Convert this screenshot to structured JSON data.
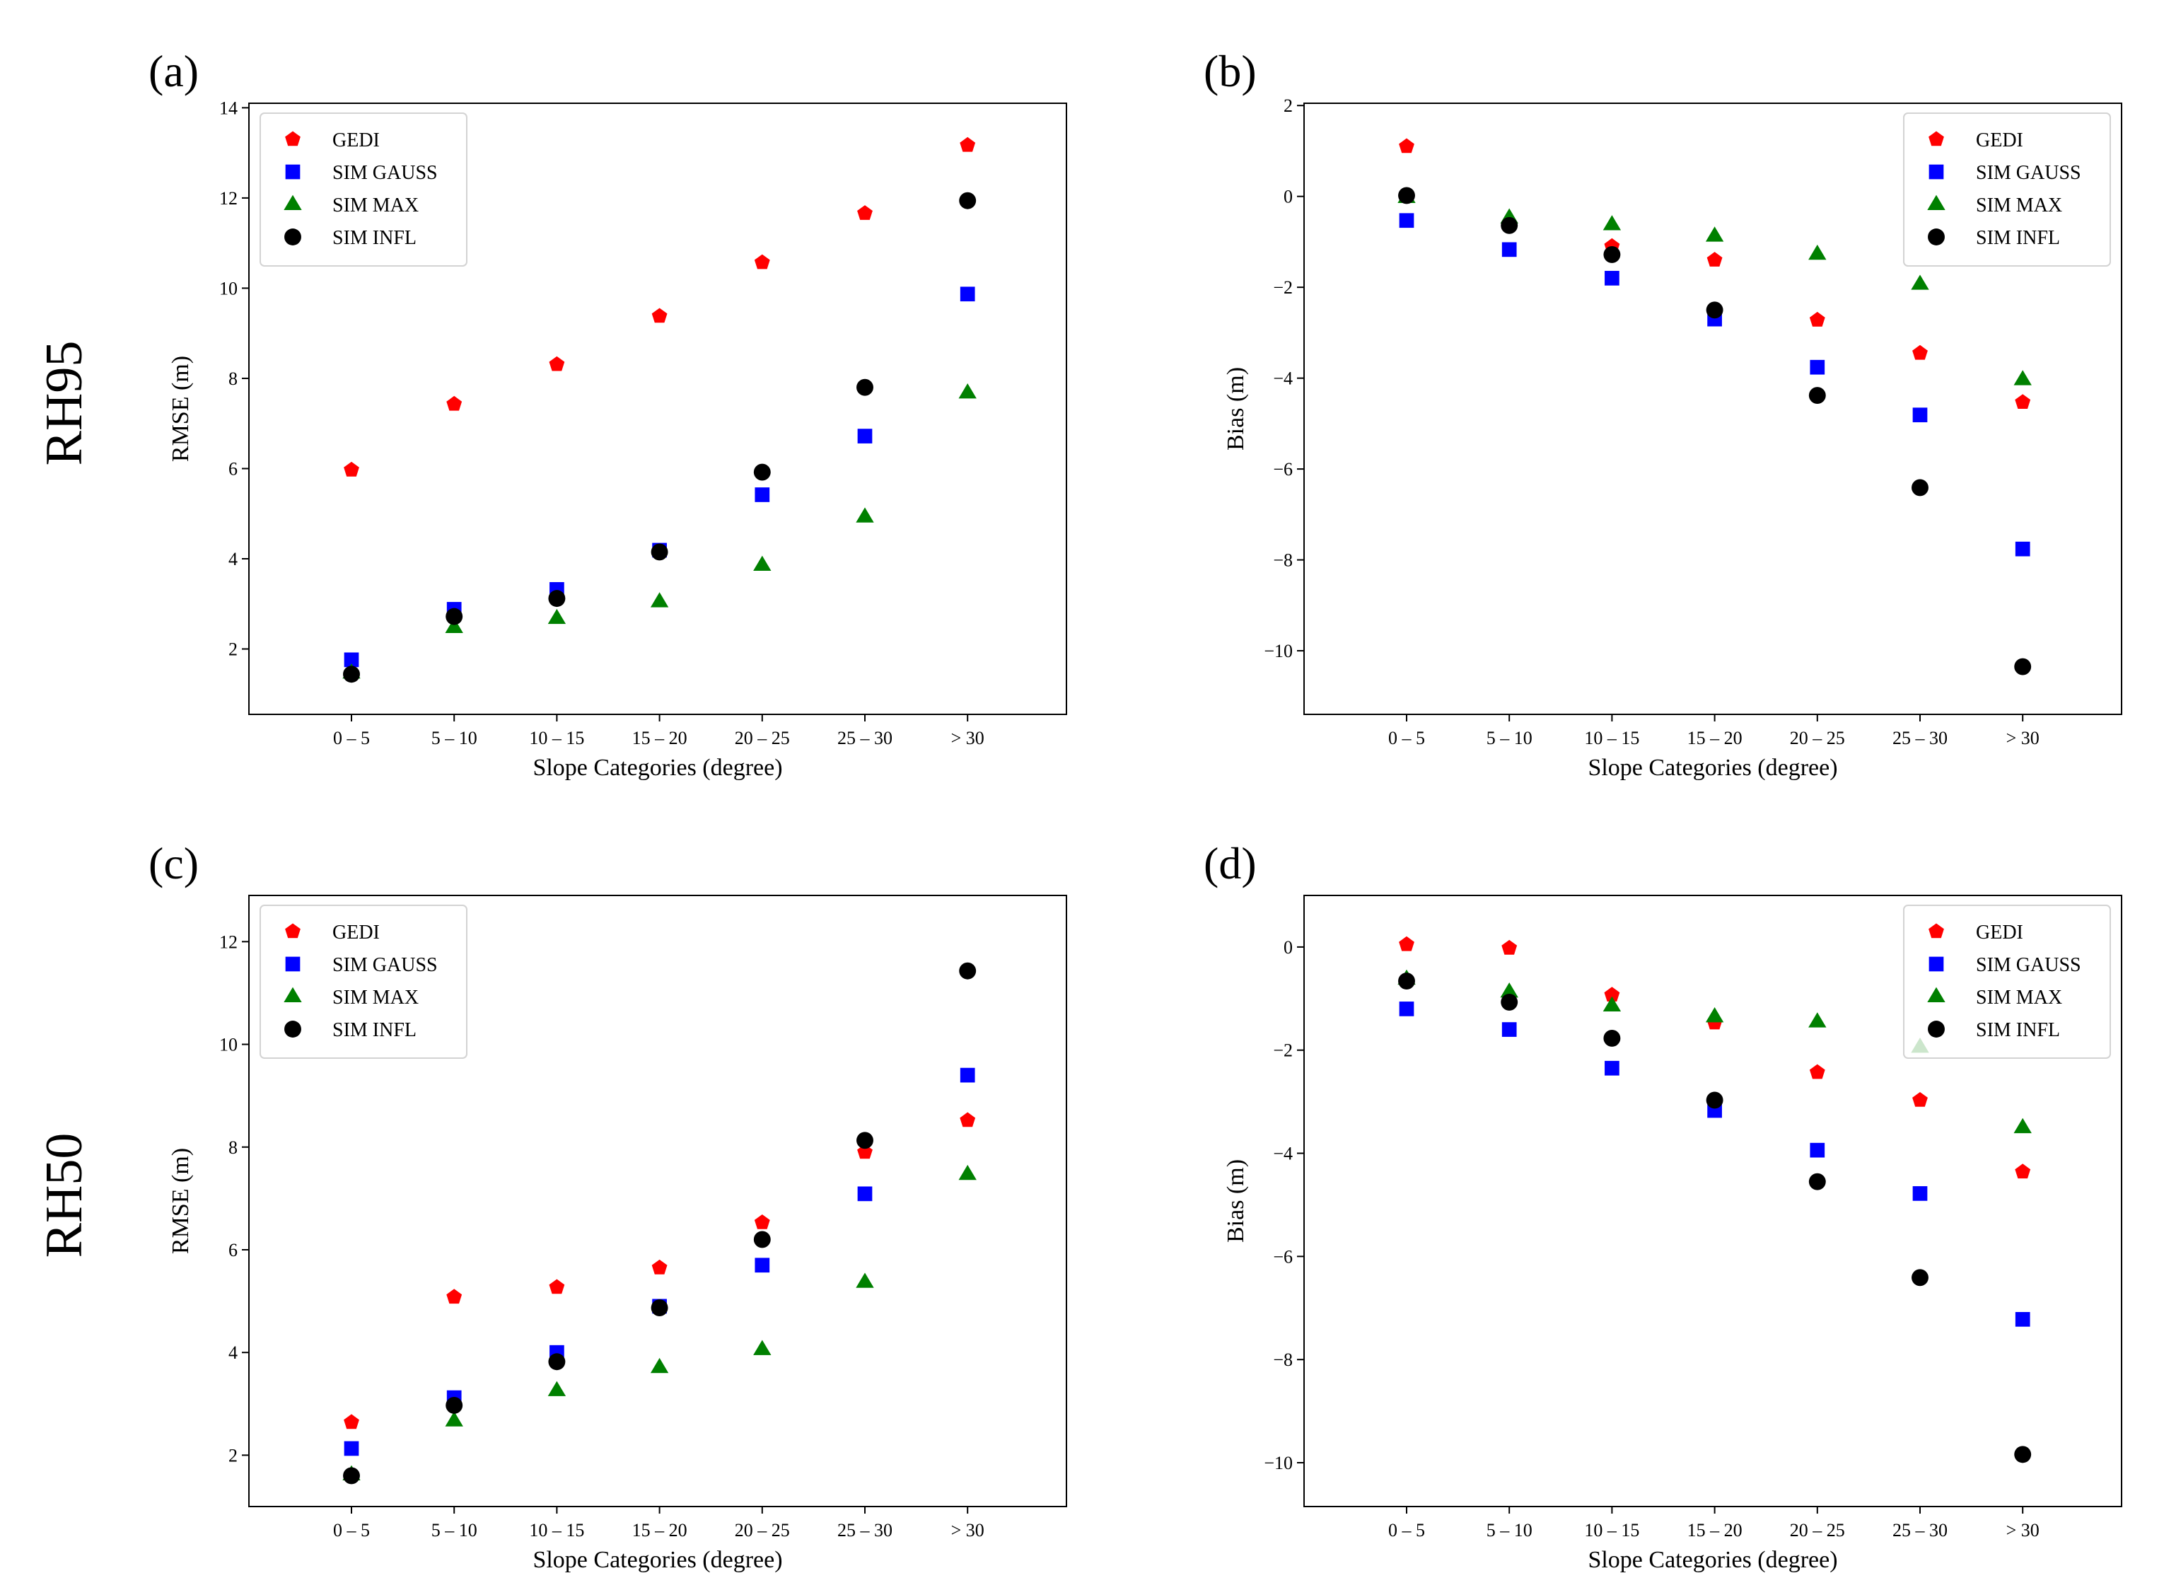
{
  "figure": {
    "row_labels": [
      "RH95",
      "RH50"
    ]
  },
  "colors": {
    "GEDI": "#ff0000",
    "SIM GAUSS": "#0000ff",
    "SIM MAX": "#008000",
    "SIM INFL": "#000000"
  },
  "chart_data": [
    {
      "panel": "(a)",
      "type": "scatter",
      "title": "",
      "xlabel": "Slope Categories (degree)",
      "ylabel": "RMSE (m)",
      "categories": [
        "0 – 5",
        "5 – 10",
        "10 – 15",
        "15 – 20",
        "20 – 25",
        "25 – 30",
        "> 30"
      ],
      "ylim": [
        0.55,
        14.1
      ],
      "yticks": [
        2,
        4,
        6,
        8,
        10,
        12,
        14
      ],
      "ytick_labels": [
        "2",
        "4",
        "6",
        "8",
        "10",
        "12",
        "14"
      ],
      "legend_position": "top-left",
      "series": [
        {
          "name": "GEDI",
          "marker": "pentagon",
          "values": [
            5.97,
            7.43,
            8.31,
            9.38,
            10.57,
            11.66,
            13.17
          ]
        },
        {
          "name": "SIM GAUSS",
          "marker": "square",
          "values": [
            1.76,
            2.88,
            3.32,
            4.19,
            5.42,
            6.72,
            9.87
          ]
        },
        {
          "name": "SIM MAX",
          "marker": "triangle",
          "values": [
            1.47,
            2.48,
            2.68,
            3.05,
            3.86,
            4.93,
            7.68
          ]
        },
        {
          "name": "SIM INFL",
          "marker": "circle",
          "values": [
            1.44,
            2.72,
            3.12,
            4.15,
            5.92,
            7.8,
            11.94
          ]
        }
      ]
    },
    {
      "panel": "(b)",
      "type": "scatter",
      "title": "",
      "xlabel": "Slope Categories (degree)",
      "ylabel": "Bias (m)",
      "categories": [
        "0 – 5",
        "5 – 10",
        "10 – 15",
        "15 – 20",
        "20 – 25",
        "25 – 30",
        "> 30"
      ],
      "ylim": [
        -11.4,
        2.05
      ],
      "yticks": [
        -10,
        -8,
        -6,
        -4,
        -2,
        0,
        2
      ],
      "ytick_labels": [
        "−10",
        "−8",
        "−6",
        "−4",
        "−2",
        "0",
        "2"
      ],
      "legend_position": "top-right",
      "series": [
        {
          "name": "GEDI",
          "marker": "pentagon",
          "values": [
            1.1,
            -0.62,
            -1.1,
            -1.4,
            -2.72,
            -3.45,
            -4.53
          ]
        },
        {
          "name": "SIM GAUSS",
          "marker": "square",
          "values": [
            -0.53,
            -1.17,
            -1.8,
            -2.7,
            -3.76,
            -4.81,
            -7.76
          ]
        },
        {
          "name": "SIM MAX",
          "marker": "triangle",
          "values": [
            -0.02,
            -0.47,
            -0.62,
            -0.87,
            -1.27,
            -1.93,
            -4.03
          ]
        },
        {
          "name": "SIM INFL",
          "marker": "circle",
          "values": [
            0.02,
            -0.64,
            -1.28,
            -2.5,
            -4.38,
            -6.41,
            -10.35
          ]
        }
      ]
    },
    {
      "panel": "(c)",
      "type": "scatter",
      "title": "",
      "xlabel": "Slope Categories (degree)",
      "ylabel": "RMSE (m)",
      "categories": [
        "0 – 5",
        "5 – 10",
        "10 – 15",
        "15 – 20",
        "20 – 25",
        "25 – 30",
        "> 30"
      ],
      "ylim": [
        1.0,
        12.9
      ],
      "yticks": [
        2,
        4,
        6,
        8,
        10,
        12
      ],
      "ytick_labels": [
        "2",
        "4",
        "6",
        "8",
        "10",
        "12"
      ],
      "legend_position": "top-left",
      "series": [
        {
          "name": "GEDI",
          "marker": "pentagon",
          "values": [
            2.64,
            5.08,
            5.27,
            5.65,
            6.53,
            7.9,
            8.52
          ]
        },
        {
          "name": "SIM GAUSS",
          "marker": "square",
          "values": [
            2.13,
            3.12,
            4.0,
            4.9,
            5.7,
            7.09,
            9.4
          ]
        },
        {
          "name": "SIM MAX",
          "marker": "triangle",
          "values": [
            1.62,
            2.67,
            3.26,
            3.71,
            4.06,
            5.37,
            7.47
          ]
        },
        {
          "name": "SIM INFL",
          "marker": "circle",
          "values": [
            1.6,
            2.97,
            3.82,
            4.87,
            6.2,
            8.13,
            11.43
          ]
        }
      ]
    },
    {
      "panel": "(d)",
      "type": "scatter",
      "title": "",
      "xlabel": "Slope Categories (degree)",
      "ylabel": "Bias (m)",
      "categories": [
        "0 – 5",
        "5 – 10",
        "10 – 15",
        "15 – 20",
        "20 – 25",
        "25 – 30",
        "> 30"
      ],
      "ylim": [
        -10.85,
        1.0
      ],
      "yticks": [
        -10,
        -8,
        -6,
        -4,
        -2,
        0
      ],
      "ytick_labels": [
        "−10",
        "−8",
        "−6",
        "−4",
        "−2",
        "0"
      ],
      "legend_position": "top-right",
      "series": [
        {
          "name": "GEDI",
          "marker": "pentagon",
          "values": [
            0.05,
            -0.02,
            -0.93,
            -1.47,
            -2.43,
            -2.97,
            -4.36
          ]
        },
        {
          "name": "SIM GAUSS",
          "marker": "square",
          "values": [
            -1.2,
            -1.6,
            -2.35,
            -3.17,
            -3.94,
            -4.78,
            -7.22
          ]
        },
        {
          "name": "SIM MAX",
          "marker": "triangle",
          "values": [
            -0.62,
            -0.87,
            -1.14,
            -1.35,
            -1.45,
            -1.94,
            -3.5
          ]
        },
        {
          "name": "SIM INFL",
          "marker": "circle",
          "values": [
            -0.66,
            -1.07,
            -1.77,
            -2.97,
            -4.55,
            -6.41,
            -9.84
          ]
        }
      ]
    }
  ]
}
